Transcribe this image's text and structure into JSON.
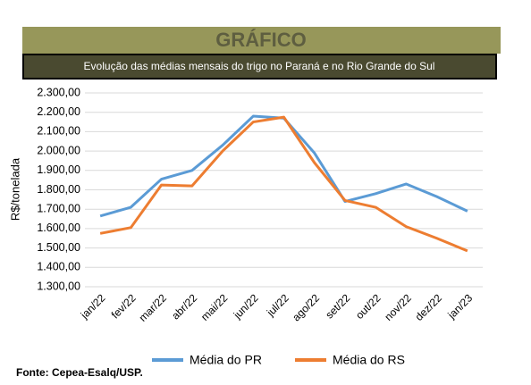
{
  "chart_data": {
    "type": "line",
    "title": "GRÁFICO",
    "subtitle": "Evolução das médias mensais do trigo no Paraná e no Rio Grande do Sul",
    "ylabel": "R$/tonelada",
    "source": "Fonte: Cepea-Esalq/USP.",
    "categories": [
      "jan/22",
      "fev/22",
      "mar/22",
      "abr/22",
      "mai/22",
      "jun/22",
      "jul/22",
      "ago/22",
      "set/22",
      "out/22",
      "nov/22",
      "dez/22",
      "jan/23"
    ],
    "series": [
      {
        "name": "Média do PR",
        "color": "#5b9bd5",
        "values": [
          1665,
          1710,
          1855,
          1900,
          2030,
          2180,
          2170,
          1990,
          1740,
          1780,
          1830,
          1765,
          1690
        ]
      },
      {
        "name": "Média do RS",
        "color": "#ed7d31",
        "values": [
          1575,
          1605,
          1825,
          1820,
          2000,
          2150,
          2175,
          1940,
          1745,
          1710,
          1610,
          1550,
          1485
        ]
      }
    ],
    "ylim": [
      1300,
      2300
    ],
    "yticks": [
      {
        "value": 1300,
        "label": "1.300,00"
      },
      {
        "value": 1400,
        "label": "1.400,00"
      },
      {
        "value": 1500,
        "label": "1.500,00"
      },
      {
        "value": 1600,
        "label": "1.600,00"
      },
      {
        "value": 1700,
        "label": "1.700,00"
      },
      {
        "value": 1800,
        "label": "1.800,00"
      },
      {
        "value": 1900,
        "label": "1.900,00"
      },
      {
        "value": 2000,
        "label": "2.000,00"
      },
      {
        "value": 2100,
        "label": "2.100,00"
      },
      {
        "value": 2200,
        "label": "2.200,00"
      },
      {
        "value": 2300,
        "label": "2.300,00"
      }
    ],
    "grid": true,
    "legend": "bottom"
  }
}
